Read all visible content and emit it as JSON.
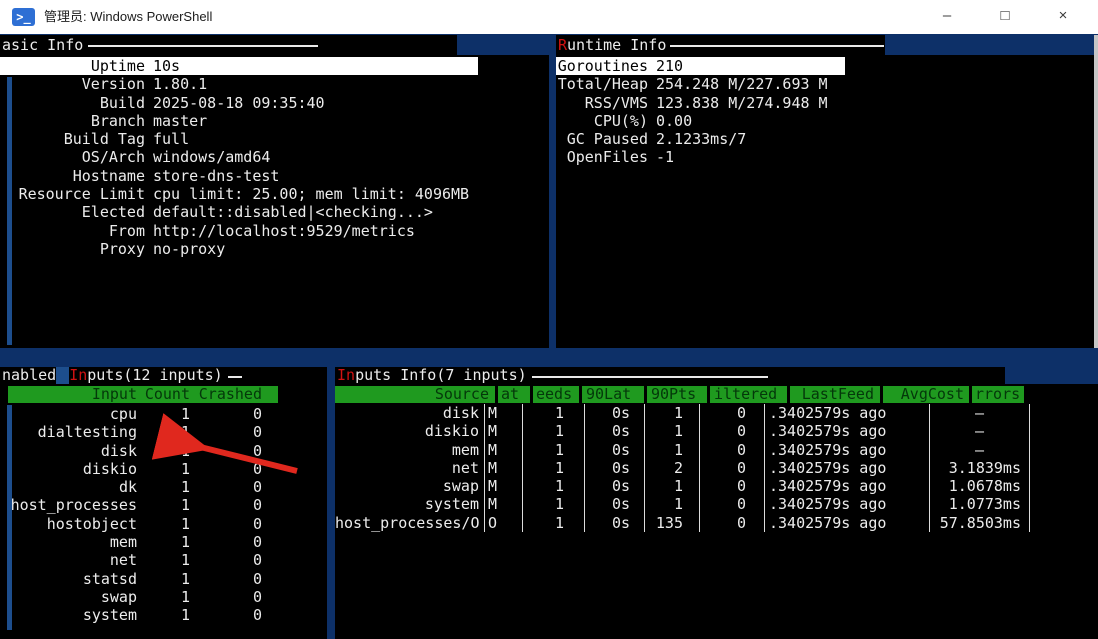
{
  "window": {
    "title": "管理员: Windows PowerShell",
    "controls": {
      "minimize": "–",
      "maximize": "□",
      "close": "×"
    }
  },
  "colors": {
    "terminal_bg": "#0d3068",
    "panel_bg": "#000000",
    "text": "#ececec",
    "selection_bg": "#ffffff",
    "header_green": "#1f9a1f",
    "header_green_text": "#04380a",
    "hotkey_red": "#d01212",
    "arrow_red": "#e0281e",
    "gap_blue": "#1d4e8d"
  },
  "panels": {
    "basic_info": {
      "title": "asic Info",
      "rows": [
        {
          "k": "Uptime",
          "v": "10s",
          "sel": true
        },
        {
          "k": "Version",
          "v": "1.80.1"
        },
        {
          "k": "Build",
          "v": "2025-08-18 09:35:40"
        },
        {
          "k": "Branch",
          "v": "master"
        },
        {
          "k": "Build Tag",
          "v": "full"
        },
        {
          "k": "OS/Arch",
          "v": "windows/amd64"
        },
        {
          "k": "Hostname",
          "v": "store-dns-test"
        },
        {
          "k": "Resource Limit",
          "v": "cpu limit: 25.00; mem limit: 4096MB"
        },
        {
          "k": "Elected",
          "v": "default::disabled|<checking...>"
        },
        {
          "k": "From",
          "v": "http://localhost:9529/metrics"
        },
        {
          "k": "Proxy",
          "v": "no-proxy"
        }
      ]
    },
    "runtime_info": {
      "title_hot": "R",
      "title_rest": "untime Info",
      "rows": [
        {
          "k": "Goroutines",
          "v": "210",
          "sel": true
        },
        {
          "k": "Total/Heap",
          "v": "254.248 M/227.693 M"
        },
        {
          "k": "RSS/VMS",
          "v": "123.838 M/274.948 M"
        },
        {
          "k": "CPU(%)",
          "v": "0.00"
        },
        {
          "k": "GC Paused",
          "v": "2.1233ms/7"
        },
        {
          "k": "OpenFiles",
          "v": "-1"
        }
      ]
    },
    "enabled_inputs": {
      "title_prefix": "nabled",
      "title_hot": "In",
      "title_rest": "puts(12 inputs)",
      "headers": [
        "Input",
        "Count",
        "Crashed"
      ],
      "rows": [
        [
          "cpu",
          "1",
          "0"
        ],
        [
          "dialtesting",
          "1",
          "0"
        ],
        [
          "disk",
          "1",
          "0"
        ],
        [
          "diskio",
          "1",
          "0"
        ],
        [
          "dk",
          "1",
          "0"
        ],
        [
          "host_processes",
          "1",
          "0"
        ],
        [
          "hostobject",
          "1",
          "0"
        ],
        [
          "mem",
          "1",
          "0"
        ],
        [
          "net",
          "1",
          "0"
        ],
        [
          "statsd",
          "1",
          "0"
        ],
        [
          "swap",
          "1",
          "0"
        ],
        [
          "system",
          "1",
          "0"
        ]
      ]
    },
    "inputs_info": {
      "title_hot": "In",
      "title_rest": "puts Info(7 inputs)",
      "headers": [
        "Source",
        "at",
        "eeds",
        "90Lat",
        "90Pts",
        "iltered",
        "LastFeed",
        "AvgCost",
        "rrors"
      ],
      "rows": [
        [
          "disk",
          "M",
          "1",
          "0s",
          "1",
          "0",
          ".3402579s ago",
          "–"
        ],
        [
          "diskio",
          "M",
          "1",
          "0s",
          "1",
          "0",
          ".3402579s ago",
          "–"
        ],
        [
          "mem",
          "M",
          "1",
          "0s",
          "1",
          "0",
          ".3402579s ago",
          "–"
        ],
        [
          "net",
          "M",
          "1",
          "0s",
          "2",
          "0",
          ".3402579s ago",
          "3.1839ms"
        ],
        [
          "swap",
          "M",
          "1",
          "0s",
          "1",
          "0",
          ".3402579s ago",
          "1.0678ms"
        ],
        [
          "system",
          "M",
          "1",
          "0s",
          "1",
          "0",
          ".3402579s ago",
          "1.0773ms"
        ],
        [
          "host_processes/O",
          "O",
          "1",
          "0s",
          "135",
          "0",
          ".3402579s ago",
          "57.8503ms"
        ]
      ]
    }
  },
  "annotation": {
    "arrow": "red arrow pointing at dialtesting input"
  }
}
